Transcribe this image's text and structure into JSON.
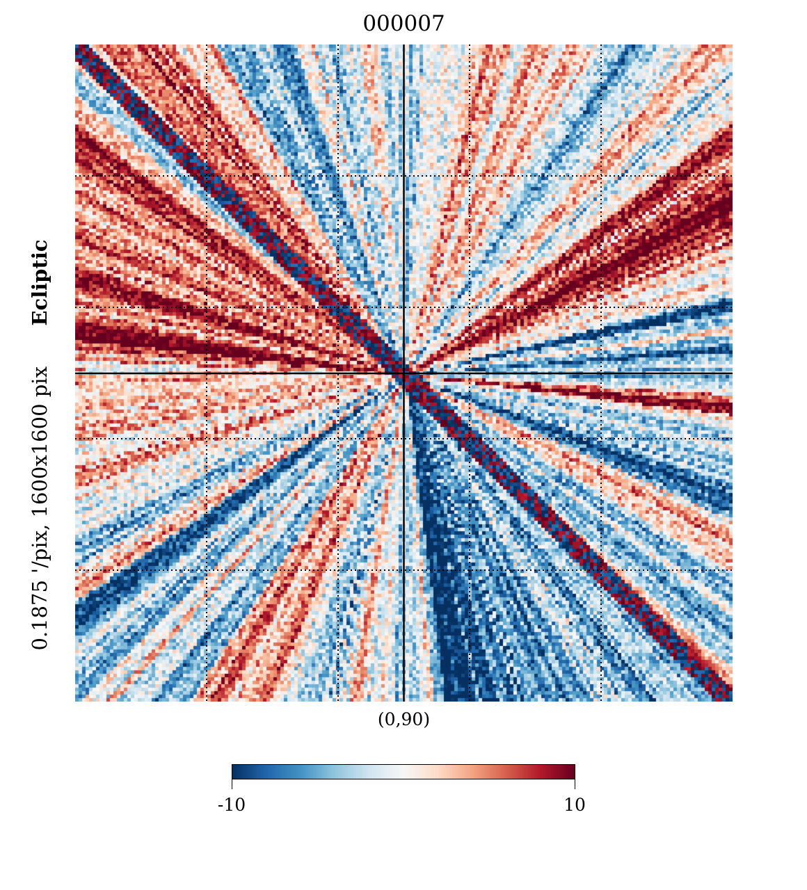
{
  "chart_data": {
    "type": "heatmap",
    "title": "000007",
    "projection": "gnomonic",
    "coord": "Ecliptic",
    "resolution_label": "0.1875 '/pix,",
    "size_label": "1600x1600 pix",
    "center_label": "(0,90)",
    "colorbar": {
      "min": -10,
      "max": 10,
      "min_label": "-10",
      "max_label": "10",
      "colormap": "RdBu_r",
      "colors": [
        "#053061",
        "#2166ac",
        "#4393c3",
        "#92c5de",
        "#d1e5f0",
        "#f7f7f7",
        "#fddbc7",
        "#f4a582",
        "#d6604d",
        "#b2182b",
        "#67001f"
      ]
    },
    "graticule": {
      "style": "dotted",
      "divisions": 5
    },
    "axes_cross": true,
    "grid_on": true
  }
}
